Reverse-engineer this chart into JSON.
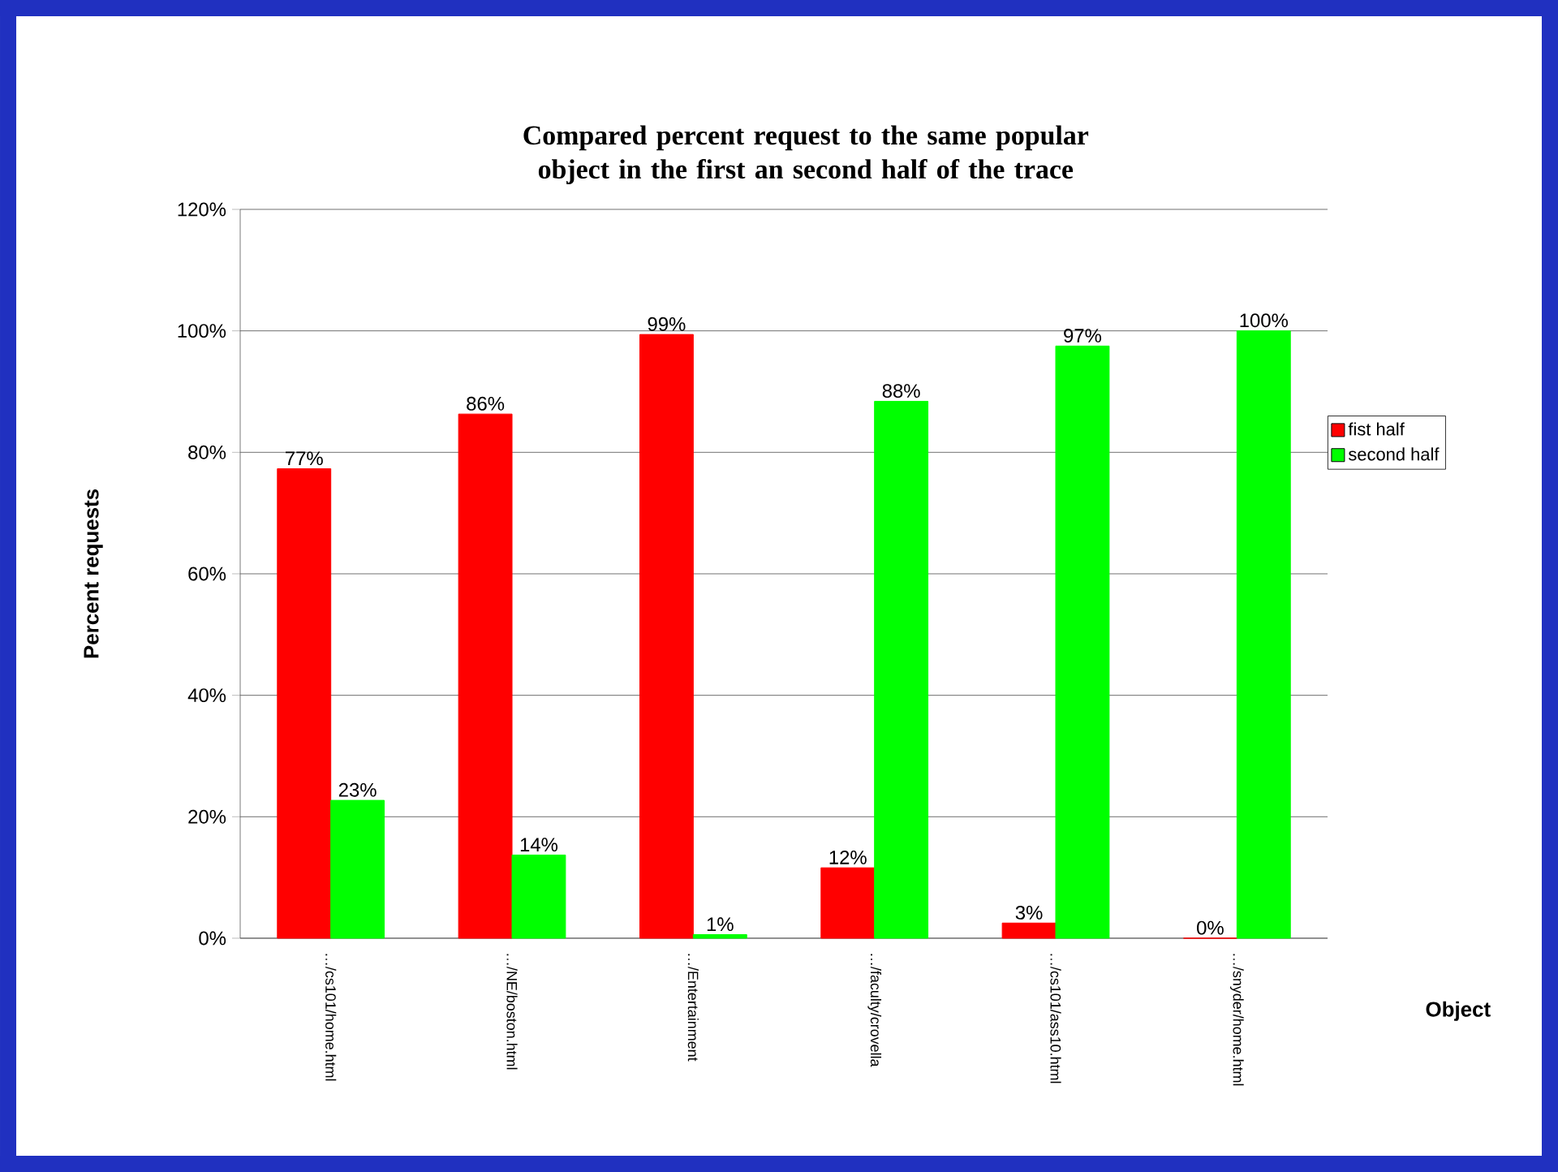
{
  "chart_data": {
    "type": "bar",
    "title": "Compared percent request to the same popular object in the first an second half of the trace",
    "xlabel": "Object",
    "ylabel": "Percent requests",
    "categories": [
      "…/cs101/home.html",
      "…/NE/boston.html",
      "…/Entertainment",
      "…/faculty/crovella",
      "…/cs101/ass10.html",
      "…/snyder/home.html"
    ],
    "series": [
      {
        "name": "fist half",
        "color": "#ff0000",
        "values": [
          77.3,
          86.3,
          99.4,
          11.6,
          2.5,
          0
        ],
        "value_labels": [
          "77%",
          "86%",
          "99%",
          "12%",
          "3%",
          "0%"
        ]
      },
      {
        "name": "second half",
        "color": "#00ff00",
        "values": [
          22.7,
          13.7,
          0.6,
          88.4,
          97.5,
          100
        ],
        "value_labels": [
          "23%",
          "14%",
          "1%",
          "88%",
          "97%",
          "100%"
        ]
      }
    ],
    "ylim": [
      0,
      120
    ],
    "yticks": [
      {
        "value": 0,
        "label": "0%"
      },
      {
        "value": 20,
        "label": "20%"
      },
      {
        "value": 40,
        "label": "40%"
      },
      {
        "value": 60,
        "label": "60%"
      },
      {
        "value": 80,
        "label": "80%"
      },
      {
        "value": 100,
        "label": "100%"
      },
      {
        "value": 120,
        "label": "120%"
      }
    ],
    "grid": "y",
    "legend": "right"
  }
}
